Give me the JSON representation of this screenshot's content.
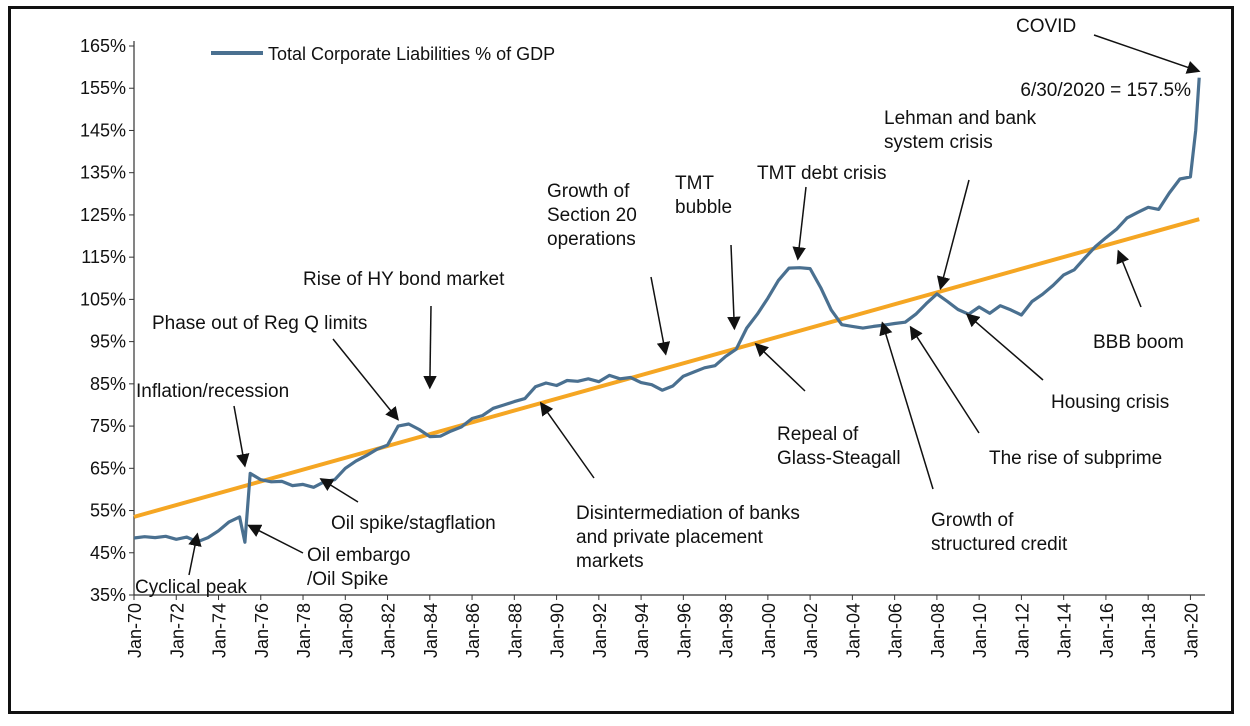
{
  "chart_data": {
    "type": "line",
    "title": "",
    "xlabel": "",
    "ylabel": "",
    "ylim": [
      35,
      165
    ],
    "y_ticks": [
      "35%",
      "45%",
      "55%",
      "65%",
      "75%",
      "85%",
      "95%",
      "105%",
      "115%",
      "125%",
      "135%",
      "145%",
      "155%",
      "165%"
    ],
    "x_ticks": [
      "Jan-70",
      "Jan-72",
      "Jan-74",
      "Jan-76",
      "Jan-78",
      "Jan-80",
      "Jan-82",
      "Jan-84",
      "Jan-86",
      "Jan-88",
      "Jan-90",
      "Jan-92",
      "Jan-94",
      "Jan-96",
      "Jan-98",
      "Jan-00",
      "Jan-02",
      "Jan-04",
      "Jan-06",
      "Jan-08",
      "Jan-10",
      "Jan-12",
      "Jan-14",
      "Jan-16",
      "Jan-18",
      "Jan-20"
    ],
    "legend": {
      "label": "Total Corporate Liabilities % of GDP",
      "placement": "top-left"
    },
    "colors": {
      "series": "#4a7090",
      "trend": "#f5a623",
      "arrow": "#111111"
    },
    "series": [
      {
        "name": "Total Corporate Liabilities % of GDP",
        "points": [
          [
            "1970-01",
            48.5
          ],
          [
            "1970-07",
            48.8
          ],
          [
            "1971-01",
            48.6
          ],
          [
            "1971-07",
            48.9
          ],
          [
            "1972-01",
            48.2
          ],
          [
            "1972-07",
            48.7
          ],
          [
            "1973-01",
            47.6
          ],
          [
            "1973-07",
            48.6
          ],
          [
            "1974-01",
            50.2
          ],
          [
            "1974-07",
            52.3
          ],
          [
            "1975-01",
            53.5
          ],
          [
            "1975-04",
            47.5
          ],
          [
            "1975-07",
            63.8
          ],
          [
            "1976-01",
            62.3
          ],
          [
            "1976-07",
            61.8
          ],
          [
            "1977-01",
            61.9
          ],
          [
            "1977-07",
            60.9
          ],
          [
            "1978-01",
            61.2
          ],
          [
            "1978-07",
            60.5
          ],
          [
            "1979-01",
            61.8
          ],
          [
            "1979-07",
            62.3
          ],
          [
            "1980-01",
            65.0
          ],
          [
            "1980-07",
            66.7
          ],
          [
            "1981-01",
            68.0
          ],
          [
            "1981-07",
            69.5
          ],
          [
            "1982-01",
            70.5
          ],
          [
            "1982-07",
            75.0
          ],
          [
            "1983-01",
            75.5
          ],
          [
            "1983-07",
            74.2
          ],
          [
            "1984-01",
            72.5
          ],
          [
            "1984-07",
            72.6
          ],
          [
            "1985-01",
            73.8
          ],
          [
            "1985-07",
            74.8
          ],
          [
            "1986-01",
            76.8
          ],
          [
            "1986-07",
            77.5
          ],
          [
            "1987-01",
            79.2
          ],
          [
            "1987-07",
            80.0
          ],
          [
            "1988-01",
            80.8
          ],
          [
            "1988-07",
            81.5
          ],
          [
            "1989-01",
            84.3
          ],
          [
            "1989-07",
            85.2
          ],
          [
            "1990-01",
            84.6
          ],
          [
            "1990-07",
            85.8
          ],
          [
            "1991-01",
            85.6
          ],
          [
            "1991-07",
            86.2
          ],
          [
            "1992-01",
            85.5
          ],
          [
            "1992-07",
            87.0
          ],
          [
            "1993-01",
            86.2
          ],
          [
            "1993-07",
            86.5
          ],
          [
            "1994-01",
            85.3
          ],
          [
            "1994-07",
            84.8
          ],
          [
            "1995-01",
            83.5
          ],
          [
            "1995-07",
            84.5
          ],
          [
            "1996-01",
            86.8
          ],
          [
            "1996-07",
            87.8
          ],
          [
            "1997-01",
            88.8
          ],
          [
            "1997-07",
            89.3
          ],
          [
            "1998-01",
            91.5
          ],
          [
            "1998-07",
            93.2
          ],
          [
            "1999-01",
            98.2
          ],
          [
            "1999-07",
            101.5
          ],
          [
            "2000-01",
            105.3
          ],
          [
            "2000-07",
            109.5
          ],
          [
            "2001-01",
            112.4
          ],
          [
            "2001-07",
            112.5
          ],
          [
            "2002-01",
            112.3
          ],
          [
            "2002-07",
            107.8
          ],
          [
            "2003-01",
            102.5
          ],
          [
            "2003-07",
            99.0
          ],
          [
            "2004-01",
            98.6
          ],
          [
            "2004-07",
            98.2
          ],
          [
            "2005-01",
            98.6
          ],
          [
            "2005-07",
            98.9
          ],
          [
            "2006-01",
            99.3
          ],
          [
            "2006-07",
            99.6
          ],
          [
            "2007-01",
            101.5
          ],
          [
            "2007-07",
            104.0
          ],
          [
            "2008-01",
            106.3
          ],
          [
            "2008-07",
            104.5
          ],
          [
            "2009-01",
            102.6
          ],
          [
            "2009-07",
            101.5
          ],
          [
            "2010-01",
            103.2
          ],
          [
            "2010-07",
            101.7
          ],
          [
            "2011-01",
            103.5
          ],
          [
            "2011-07",
            102.5
          ],
          [
            "2012-01",
            101.3
          ],
          [
            "2012-07",
            104.5
          ],
          [
            "2013-01",
            106.2
          ],
          [
            "2013-07",
            108.3
          ],
          [
            "2014-01",
            110.8
          ],
          [
            "2014-07",
            112.0
          ],
          [
            "2015-01",
            114.8
          ],
          [
            "2015-07",
            117.5
          ],
          [
            "2016-01",
            119.6
          ],
          [
            "2016-07",
            121.6
          ],
          [
            "2017-01",
            124.3
          ],
          [
            "2017-07",
            125.6
          ],
          [
            "2018-01",
            126.8
          ],
          [
            "2018-07",
            126.3
          ],
          [
            "2019-01",
            130.2
          ],
          [
            "2019-07",
            133.5
          ],
          [
            "2020-01",
            134.0
          ],
          [
            "2020-04",
            145.0
          ],
          [
            "2020-06",
            157.5
          ]
        ]
      },
      {
        "name": "Trend",
        "points": [
          [
            "1970-01",
            53.5
          ],
          [
            "2020-06",
            124.0
          ]
        ]
      }
    ],
    "annotations": [
      {
        "lines": [
          "COVID"
        ],
        "arrow_to": [
          "2020-06",
          159.0
        ]
      },
      {
        "lines": [
          "6/30/2020 =  157.5%"
        ],
        "arrow_to": null
      },
      {
        "lines": [
          "Lehman  and bank",
          "system crisis"
        ],
        "arrow_to": [
          "2008-03",
          107.5
        ]
      },
      {
        "lines": [
          "TMT  debt crisis"
        ],
        "arrow_to": [
          "2001-06",
          114.5
        ]
      },
      {
        "lines": [
          "TMT",
          "bubble"
        ],
        "arrow_to": [
          "1998-06",
          98.0
        ]
      },
      {
        "lines": [
          "Growth of",
          "Section 20",
          "operations"
        ],
        "arrow_to": [
          "1995-03",
          92.0
        ]
      },
      {
        "lines": [
          "Rise of HY bond market"
        ],
        "arrow_to": [
          "1984-01",
          84.0
        ]
      },
      {
        "lines": [
          "Phase out of Reg Q  limits"
        ],
        "arrow_to": [
          "1982-07",
          76.5
        ]
      },
      {
        "lines": [
          "Inflation/recession"
        ],
        "arrow_to": [
          "1975-04",
          65.5
        ]
      },
      {
        "lines": [
          "Oil spike/stagflation"
        ],
        "arrow_to": [
          "1978-11",
          62.5
        ]
      },
      {
        "lines": [
          "Oil embargo",
          "/Oil Spike"
        ],
        "arrow_to": [
          "1975-06",
          51.5
        ]
      },
      {
        "lines": [
          "Cyclical peak"
        ],
        "arrow_to": [
          "1973-01",
          49.5
        ]
      },
      {
        "lines": [
          "Disintermediation  of banks",
          "and private placement",
          "markets"
        ],
        "arrow_to": [
          "1989-04",
          80.5
        ]
      },
      {
        "lines": [
          "Repeal of",
          "Glass-Steagall"
        ],
        "arrow_to": [
          "1999-06",
          94.5
        ]
      },
      {
        "lines": [
          "Growth of",
          "structured credit"
        ],
        "arrow_to": [
          "2005-06",
          99.5
        ]
      },
      {
        "lines": [
          "The rise of subprime"
        ],
        "arrow_to": [
          "2006-10",
          98.5
        ]
      },
      {
        "lines": [
          "Housing crisis"
        ],
        "arrow_to": [
          "2009-06",
          101.5
        ]
      },
      {
        "lines": [
          "BBB boom"
        ],
        "arrow_to": [
          "2016-08",
          116.5
        ]
      }
    ]
  }
}
